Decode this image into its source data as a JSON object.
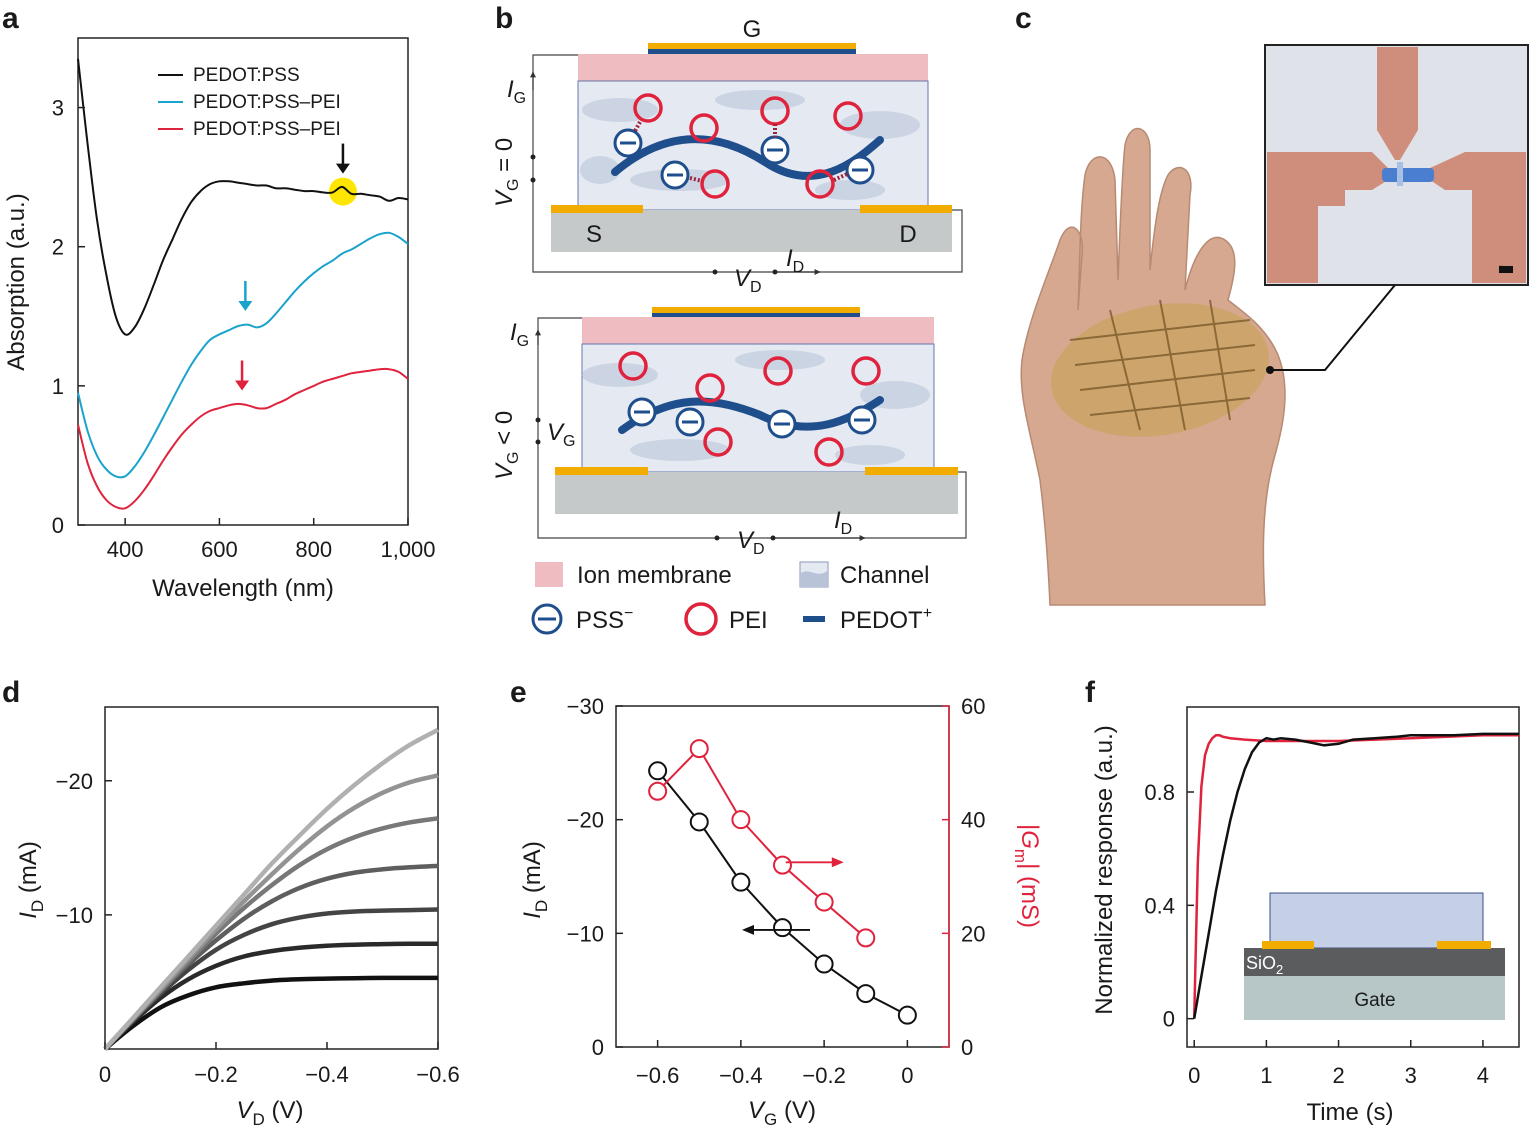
{
  "panels": {
    "a": "a",
    "b": "b",
    "c": "c",
    "d": "d",
    "e": "e",
    "f": "f"
  },
  "colors": {
    "black": "#111111",
    "cyan": "#1aa3cc",
    "red": "#e0233d",
    "orange": "#f2ac00",
    "navy": "#1f4e8c",
    "pink": "#efbcc2",
    "channel": "#e4e9f2",
    "substrate": "#c6c9ca",
    "highlight": "#ffe600"
  },
  "diagram_b": {
    "top": {
      "gate_label": "G",
      "ig_label": "I",
      "ig_sub": "G",
      "vg_condition": "V",
      "vg_sub": "G",
      "vg_rel": " = 0",
      "source": "S",
      "drain": "D",
      "vd_label": "V",
      "vd_sub": "D",
      "id_label": "I",
      "id_sub": "D"
    },
    "bottom": {
      "ig_label": "I",
      "ig_sub": "G",
      "vg_condition": "V",
      "vg_sub": "G",
      "vg_rel": " < 0",
      "vg_src": "V",
      "vg_src_sub": "G",
      "vd_label": "V",
      "vd_sub": "D",
      "id_label": "I",
      "id_sub": "D"
    },
    "legend": {
      "ion_membrane": "Ion membrane",
      "channel": "Channel",
      "pss": "PSS",
      "pss_sup": "−",
      "pei": "PEI",
      "pedot": "PEDOT",
      "pedot_sup": "+"
    }
  },
  "micrograph_c": {
    "scale_bar": "scale-bar"
  },
  "inset_f": {
    "sio2": "SiO",
    "sio2_sub": "2",
    "gate": "Gate"
  },
  "chart_data": [
    {
      "id": "a",
      "type": "line",
      "title": "",
      "xlabel": "Wavelength (nm)",
      "ylabel": "Absorption (a.u.)",
      "xlim": [
        300,
        1000
      ],
      "ylim": [
        0,
        3.5
      ],
      "xticks": [
        400,
        600,
        800,
        1000
      ],
      "xtick_labels": [
        "400",
        "600",
        "800",
        "1,000"
      ],
      "yticks": [
        0,
        1,
        2,
        3
      ],
      "ytick_labels": [
        "0",
        "1",
        "2",
        "3"
      ],
      "legend": "top-right",
      "series": [
        {
          "name": "PEDOT:PSS",
          "color": "#111111",
          "x": [
            300,
            320,
            340,
            360,
            380,
            400,
            420,
            440,
            460,
            480,
            500,
            520,
            540,
            560,
            580,
            600,
            620,
            640,
            660,
            680,
            700,
            720,
            740,
            760,
            780,
            800,
            820,
            840,
            860,
            880,
            900,
            920,
            940,
            960,
            980,
            1000
          ],
          "y": [
            3.35,
            2.75,
            2.2,
            1.8,
            1.5,
            1.37,
            1.42,
            1.55,
            1.72,
            1.9,
            2.05,
            2.2,
            2.32,
            2.4,
            2.45,
            2.47,
            2.47,
            2.46,
            2.45,
            2.44,
            2.44,
            2.42,
            2.42,
            2.41,
            2.4,
            2.4,
            2.39,
            2.39,
            2.43,
            2.38,
            2.38,
            2.37,
            2.36,
            2.33,
            2.35,
            2.34
          ]
        },
        {
          "name": "PEDOT:PSS–PEI",
          "color": "#1aa3cc",
          "x": [
            300,
            320,
            340,
            360,
            380,
            400,
            420,
            440,
            460,
            480,
            500,
            520,
            540,
            560,
            580,
            600,
            620,
            640,
            660,
            680,
            700,
            720,
            740,
            760,
            780,
            800,
            820,
            840,
            860,
            880,
            900,
            920,
            940,
            960,
            980,
            1000
          ],
          "y": [
            0.95,
            0.68,
            0.5,
            0.4,
            0.35,
            0.35,
            0.42,
            0.52,
            0.64,
            0.77,
            0.9,
            1.03,
            1.15,
            1.25,
            1.33,
            1.37,
            1.4,
            1.43,
            1.44,
            1.42,
            1.45,
            1.52,
            1.6,
            1.68,
            1.75,
            1.81,
            1.86,
            1.9,
            1.95,
            1.98,
            2.02,
            2.06,
            2.09,
            2.1,
            2.07,
            2.02
          ]
        },
        {
          "name": "PEDOT:PSS–PEI",
          "color": "#e0233d",
          "x": [
            300,
            320,
            340,
            360,
            380,
            400,
            420,
            440,
            460,
            480,
            500,
            520,
            540,
            560,
            580,
            600,
            620,
            640,
            660,
            680,
            700,
            720,
            740,
            760,
            780,
            800,
            820,
            840,
            860,
            880,
            900,
            920,
            940,
            960,
            980,
            1000
          ],
          "y": [
            0.72,
            0.45,
            0.28,
            0.18,
            0.13,
            0.12,
            0.17,
            0.25,
            0.35,
            0.46,
            0.56,
            0.65,
            0.72,
            0.78,
            0.82,
            0.84,
            0.86,
            0.87,
            0.86,
            0.84,
            0.84,
            0.87,
            0.9,
            0.94,
            0.97,
            1.0,
            1.03,
            1.05,
            1.07,
            1.09,
            1.1,
            1.11,
            1.12,
            1.12,
            1.1,
            1.05
          ]
        }
      ],
      "annotations": [
        {
          "type": "arrow",
          "series": 0,
          "x": 862,
          "color": "#111111"
        },
        {
          "type": "highlight",
          "series": 0,
          "x": 862,
          "color": "#ffe600"
        },
        {
          "type": "arrow",
          "series": 1,
          "x": 655,
          "color": "#1aa3cc"
        },
        {
          "type": "arrow",
          "series": 2,
          "x": 648,
          "color": "#e0233d"
        }
      ]
    },
    {
      "id": "d",
      "type": "line",
      "title": "",
      "xlabel": "V",
      "xlabel_sub": "D",
      "xlabel_unit": " (V)",
      "ylabel": "I",
      "ylabel_sub": "D",
      "ylabel_unit": " (mA)",
      "xlim": [
        0,
        -0.6
      ],
      "ylim": [
        0,
        -25.5
      ],
      "xticks": [
        0,
        -0.2,
        -0.4,
        -0.6
      ],
      "xtick_labels": [
        "0",
        "−0.2",
        "−0.4",
        "−0.6"
      ],
      "yticks": [
        -10,
        -20
      ],
      "ytick_labels": [
        "−10",
        "−20"
      ],
      "series": [
        {
          "name": "curve-1",
          "color": "#111111",
          "width": 4.5,
          "x": [
            0,
            -0.05,
            -0.1,
            -0.15,
            -0.2,
            -0.25,
            -0.3,
            -0.35,
            -0.4,
            -0.45,
            -0.5,
            -0.55,
            -0.6
          ],
          "y": [
            0,
            -1.7,
            -3.1,
            -4.0,
            -4.6,
            -4.9,
            -5.1,
            -5.2,
            -5.25,
            -5.28,
            -5.3,
            -5.3,
            -5.3
          ]
        },
        {
          "name": "curve-2",
          "color": "#2a2a2a",
          "width": 4.5,
          "x": [
            0,
            -0.05,
            -0.1,
            -0.15,
            -0.2,
            -0.25,
            -0.3,
            -0.35,
            -0.4,
            -0.45,
            -0.5,
            -0.55,
            -0.6
          ],
          "y": [
            0,
            -2.0,
            -3.8,
            -5.2,
            -6.2,
            -6.9,
            -7.3,
            -7.55,
            -7.7,
            -7.78,
            -7.82,
            -7.85,
            -7.85
          ]
        },
        {
          "name": "curve-3",
          "color": "#444444",
          "width": 4.5,
          "x": [
            0,
            -0.05,
            -0.1,
            -0.15,
            -0.2,
            -0.25,
            -0.3,
            -0.35,
            -0.4,
            -0.45,
            -0.5,
            -0.55,
            -0.6
          ],
          "y": [
            0,
            -2.1,
            -4.1,
            -5.9,
            -7.4,
            -8.5,
            -9.3,
            -9.8,
            -10.1,
            -10.25,
            -10.32,
            -10.36,
            -10.4
          ]
        },
        {
          "name": "curve-4",
          "color": "#5e5e5e",
          "width": 4.5,
          "x": [
            0,
            -0.05,
            -0.1,
            -0.15,
            -0.2,
            -0.25,
            -0.3,
            -0.35,
            -0.4,
            -0.45,
            -0.5,
            -0.55,
            -0.6
          ],
          "y": [
            0,
            -2.15,
            -4.25,
            -6.3,
            -8.1,
            -9.7,
            -11.0,
            -12.0,
            -12.7,
            -13.15,
            -13.4,
            -13.55,
            -13.65
          ]
        },
        {
          "name": "curve-5",
          "color": "#787878",
          "width": 4.5,
          "x": [
            0,
            -0.05,
            -0.1,
            -0.15,
            -0.2,
            -0.25,
            -0.3,
            -0.35,
            -0.4,
            -0.45,
            -0.5,
            -0.55,
            -0.6
          ],
          "y": [
            0,
            -2.2,
            -4.35,
            -6.5,
            -8.6,
            -10.5,
            -12.2,
            -13.7,
            -14.9,
            -15.8,
            -16.45,
            -16.9,
            -17.2
          ]
        },
        {
          "name": "curve-6",
          "color": "#939393",
          "width": 4.5,
          "x": [
            0,
            -0.05,
            -0.1,
            -0.15,
            -0.2,
            -0.25,
            -0.3,
            -0.35,
            -0.4,
            -0.45,
            -0.5,
            -0.55,
            -0.6
          ],
          "y": [
            0,
            -2.25,
            -4.45,
            -6.7,
            -8.9,
            -11.0,
            -13.0,
            -14.9,
            -16.6,
            -18.0,
            -19.1,
            -19.9,
            -20.4
          ]
        },
        {
          "name": "curve-7",
          "color": "#b0b0b0",
          "width": 4.5,
          "x": [
            0,
            -0.05,
            -0.1,
            -0.15,
            -0.2,
            -0.25,
            -0.3,
            -0.35,
            -0.4,
            -0.45,
            -0.5,
            -0.55,
            -0.6
          ],
          "y": [
            0,
            -2.3,
            -4.6,
            -6.9,
            -9.2,
            -11.5,
            -13.8,
            -15.9,
            -17.9,
            -19.7,
            -21.3,
            -22.7,
            -23.8
          ]
        }
      ]
    },
    {
      "id": "e",
      "type": "scatter",
      "title": "",
      "xlabel": "V",
      "xlabel_sub": "G",
      "xlabel_unit": " (V)",
      "ylabel": "I",
      "ylabel_sub": "D",
      "ylabel_unit": " (mA)",
      "y2label": "|G",
      "y2label_sub": "m",
      "y2label_unit": "| (mS)",
      "xlim": [
        -0.7,
        0.1
      ],
      "ylim": [
        0,
        -30
      ],
      "y2lim": [
        0,
        60
      ],
      "xticks": [
        -0.6,
        -0.4,
        -0.2,
        0
      ],
      "xtick_labels": [
        "−0.6",
        "−0.4",
        "−0.2",
        "0"
      ],
      "yticks": [
        0,
        -10,
        -20,
        -30
      ],
      "ytick_labels": [
        "0",
        "−10",
        "−20",
        "−30"
      ],
      "y2ticks": [
        0,
        20,
        40,
        60
      ],
      "y2tick_labels": [
        "0",
        "20",
        "40",
        "60"
      ],
      "series": [
        {
          "name": "I_D",
          "axis": "left",
          "color": "#111111",
          "x": [
            -0.6,
            -0.5,
            -0.4,
            -0.3,
            -0.2,
            -0.1,
            0
          ],
          "y": [
            -24.3,
            -19.8,
            -14.5,
            -10.5,
            -7.3,
            -4.7,
            -2.8
          ]
        },
        {
          "name": "|G_m|",
          "axis": "right",
          "color": "#e0233d",
          "x": [
            -0.6,
            -0.5,
            -0.4,
            -0.3,
            -0.2,
            -0.1
          ],
          "y": [
            45,
            52.5,
            40,
            32,
            25.5,
            19.2
          ]
        }
      ],
      "annotations": [
        {
          "type": "arrow",
          "direction": "left",
          "target": "I_D",
          "color": "#111111"
        },
        {
          "type": "arrow",
          "direction": "right",
          "target": "|G_m|",
          "color": "#e0233d"
        }
      ]
    },
    {
      "id": "f",
      "type": "line",
      "title": "",
      "xlabel": "Time (s)",
      "ylabel": "Normalized response (a.u.)",
      "xlim": [
        -0.1,
        4.5
      ],
      "ylim": [
        -0.1,
        1.1
      ],
      "xticks": [
        0,
        1,
        2,
        3,
        4
      ],
      "xtick_labels": [
        "0",
        "1",
        "2",
        "3",
        "4"
      ],
      "yticks": [
        0,
        0.4,
        0.8
      ],
      "ytick_labels": [
        "0",
        "0.4",
        "0.8"
      ],
      "series": [
        {
          "name": "red",
          "color": "#e0233d",
          "x": [
            0,
            0.05,
            0.1,
            0.15,
            0.2,
            0.25,
            0.3,
            0.35,
            0.4,
            0.5,
            0.7,
            1.0,
            1.5,
            2.0,
            2.5,
            3.0,
            3.5,
            4.0,
            4.5
          ],
          "y": [
            0,
            0.55,
            0.82,
            0.93,
            0.97,
            0.99,
            1.0,
            1.0,
            0.995,
            0.99,
            0.985,
            0.98,
            0.98,
            0.98,
            0.985,
            0.99,
            0.995,
            1.0,
            1.0
          ]
        },
        {
          "name": "black",
          "color": "#111111",
          "x": [
            0,
            0.1,
            0.2,
            0.3,
            0.4,
            0.5,
            0.6,
            0.7,
            0.8,
            0.9,
            1.0,
            1.1,
            1.2,
            1.4,
            1.6,
            1.8,
            2.0,
            2.2,
            2.5,
            2.8,
            3.0,
            3.3,
            3.6,
            4.0,
            4.3,
            4.5
          ],
          "y": [
            0,
            0.15,
            0.3,
            0.45,
            0.58,
            0.7,
            0.8,
            0.88,
            0.94,
            0.975,
            0.99,
            0.985,
            0.99,
            0.985,
            0.975,
            0.965,
            0.97,
            0.985,
            0.99,
            0.995,
            1.0,
            1.0,
            1.0,
            1.005,
            1.005,
            1.005
          ]
        }
      ]
    }
  ]
}
